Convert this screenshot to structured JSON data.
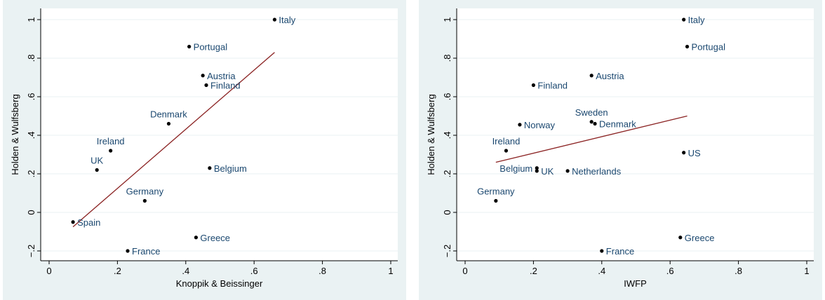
{
  "chart_data": [
    {
      "type": "scatter",
      "xlabel": "Knoppik & Beissinger",
      "ylabel": "Holden & Wulfsberg",
      "xlim": [
        0,
        1
      ],
      "ylim": [
        -0.2,
        1
      ],
      "xticks": [
        "0",
        ".2",
        ".4",
        ".6",
        ".8",
        "1"
      ],
      "yticks": [
        "−.2",
        "0",
        ".2",
        ".4",
        ".6",
        ".8",
        "1"
      ],
      "grid": true,
      "points": [
        {
          "label": "Italy",
          "x": 0.66,
          "y": 1.0,
          "pos": "right"
        },
        {
          "label": "Portugal",
          "x": 0.41,
          "y": 0.86,
          "pos": "right"
        },
        {
          "label": "Austria",
          "x": 0.45,
          "y": 0.71,
          "pos": "right"
        },
        {
          "label": "Finland",
          "x": 0.46,
          "y": 0.66,
          "pos": "right"
        },
        {
          "label": "Denmark",
          "x": 0.35,
          "y": 0.46,
          "pos": "above"
        },
        {
          "label": "Ireland",
          "x": 0.18,
          "y": 0.32,
          "pos": "above"
        },
        {
          "label": "UK",
          "x": 0.14,
          "y": 0.22,
          "pos": "above"
        },
        {
          "label": "Belgium",
          "x": 0.47,
          "y": 0.23,
          "pos": "right"
        },
        {
          "label": "Germany",
          "x": 0.28,
          "y": 0.06,
          "pos": "above"
        },
        {
          "label": "Spain",
          "x": 0.07,
          "y": -0.05,
          "pos": "right"
        },
        {
          "label": "Greece",
          "x": 0.43,
          "y": -0.13,
          "pos": "right"
        },
        {
          "label": "France",
          "x": 0.23,
          "y": -0.2,
          "pos": "right"
        }
      ],
      "fit_line": {
        "x": [
          0.07,
          0.66
        ],
        "y": [
          -0.075,
          0.83
        ]
      },
      "colors": {
        "point": "#000000",
        "label": "#1a476f",
        "fit": "#8b2323",
        "grid": "#eaf2f3",
        "background": "#eaf2f3",
        "plot": "#ffffff"
      }
    },
    {
      "type": "scatter",
      "xlabel": "IWFP",
      "ylabel": "Holden & Wulfsberg",
      "xlim": [
        0,
        1
      ],
      "ylim": [
        -0.2,
        1
      ],
      "xticks": [
        "0",
        ".2",
        ".4",
        ".6",
        ".8",
        "1"
      ],
      "yticks": [
        "−.2",
        "0",
        ".2",
        ".4",
        ".6",
        ".8",
        "1"
      ],
      "grid": true,
      "points": [
        {
          "label": "Italy",
          "x": 0.64,
          "y": 1.0,
          "pos": "right"
        },
        {
          "label": "Portugal",
          "x": 0.65,
          "y": 0.86,
          "pos": "right"
        },
        {
          "label": "Austria",
          "x": 0.37,
          "y": 0.71,
          "pos": "right"
        },
        {
          "label": "Finland",
          "x": 0.2,
          "y": 0.66,
          "pos": "right"
        },
        {
          "label": "Sweden",
          "x": 0.37,
          "y": 0.47,
          "pos": "above"
        },
        {
          "label": "Denmark",
          "x": 0.38,
          "y": 0.46,
          "pos": "right"
        },
        {
          "label": "Norway",
          "x": 0.16,
          "y": 0.455,
          "pos": "right"
        },
        {
          "label": "Ireland",
          "x": 0.12,
          "y": 0.32,
          "pos": "above"
        },
        {
          "label": "US",
          "x": 0.64,
          "y": 0.31,
          "pos": "right"
        },
        {
          "label": "Belgium",
          "x": 0.21,
          "y": 0.23,
          "pos": "left"
        },
        {
          "label": "UK",
          "x": 0.21,
          "y": 0.215,
          "pos": "right"
        },
        {
          "label": "Netherlands",
          "x": 0.3,
          "y": 0.215,
          "pos": "right"
        },
        {
          "label": "Germany",
          "x": 0.09,
          "y": 0.06,
          "pos": "above"
        },
        {
          "label": "Greece",
          "x": 0.63,
          "y": -0.13,
          "pos": "right"
        },
        {
          "label": "France",
          "x": 0.4,
          "y": -0.2,
          "pos": "right"
        }
      ],
      "fit_line": {
        "x": [
          0.09,
          0.65
        ],
        "y": [
          0.26,
          0.5
        ]
      },
      "colors": {
        "point": "#000000",
        "label": "#1a476f",
        "fit": "#8b2323",
        "grid": "#eaf2f3",
        "background": "#eaf2f3",
        "plot": "#ffffff"
      }
    }
  ]
}
